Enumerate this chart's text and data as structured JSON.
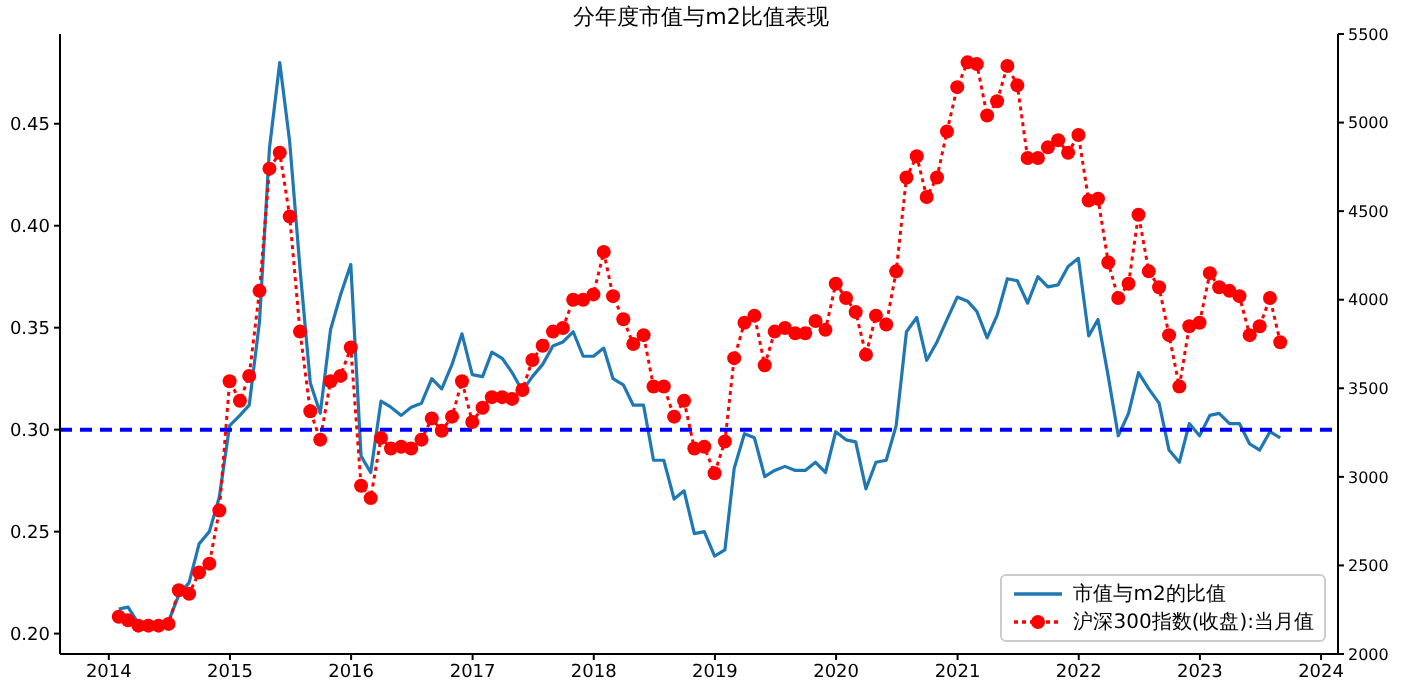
{
  "chart_data": {
    "type": "line",
    "title": "分年度市值与m2比值表现",
    "x": [
      "2014-01-31",
      "2014-02-28",
      "2014-03-31",
      "2014-04-30",
      "2014-05-31",
      "2014-06-30",
      "2014-07-31",
      "2014-08-31",
      "2014-09-30",
      "2014-10-31",
      "2014-11-30",
      "2014-12-31",
      "2015-01-31",
      "2015-02-28",
      "2015-03-31",
      "2015-04-30",
      "2015-05-31",
      "2015-06-30",
      "2015-07-31",
      "2015-08-31",
      "2015-09-30",
      "2015-10-31",
      "2015-11-30",
      "2015-12-31",
      "2016-01-31",
      "2016-02-29",
      "2016-03-31",
      "2016-04-30",
      "2016-05-31",
      "2016-06-30",
      "2016-07-31",
      "2016-08-31",
      "2016-09-30",
      "2016-10-31",
      "2016-11-30",
      "2016-12-31",
      "2017-01-31",
      "2017-02-28",
      "2017-03-31",
      "2017-04-30",
      "2017-05-31",
      "2017-06-30",
      "2017-07-31",
      "2017-08-31",
      "2017-09-30",
      "2017-10-31",
      "2017-11-30",
      "2017-12-31",
      "2018-01-31",
      "2018-02-28",
      "2018-03-31",
      "2018-04-30",
      "2018-05-31",
      "2018-06-30",
      "2018-07-31",
      "2018-08-31",
      "2018-09-30",
      "2018-10-31",
      "2018-11-30",
      "2018-12-31",
      "2019-01-31",
      "2019-02-28",
      "2019-03-31",
      "2019-04-30",
      "2019-05-31",
      "2019-06-30",
      "2019-07-31",
      "2019-08-31",
      "2019-09-30",
      "2019-10-31",
      "2019-11-30",
      "2019-12-31",
      "2020-01-31",
      "2020-02-29",
      "2020-03-31",
      "2020-04-30",
      "2020-05-31",
      "2020-06-30",
      "2020-07-31",
      "2020-08-31",
      "2020-09-30",
      "2020-10-31",
      "2020-11-30",
      "2020-12-31",
      "2021-01-31",
      "2021-02-28",
      "2021-03-31",
      "2021-04-30",
      "2021-05-31",
      "2021-06-30",
      "2021-07-31",
      "2021-08-31",
      "2021-09-30",
      "2021-10-31",
      "2021-11-30",
      "2021-12-31",
      "2022-01-31",
      "2022-02-28",
      "2022-03-31",
      "2022-04-30",
      "2022-05-31",
      "2022-06-30",
      "2022-07-31",
      "2022-08-31",
      "2022-09-30",
      "2022-10-31",
      "2022-11-30",
      "2022-12-31",
      "2023-01-31",
      "2023-02-28",
      "2023-03-31",
      "2023-04-30",
      "2023-05-31",
      "2023-06-30",
      "2023-07-31",
      "2023-08-31"
    ],
    "series": [
      {
        "name": "市值与m2的比值",
        "color": "#1f77b4",
        "line_style": "solid",
        "marker": "none",
        "values": [
          0.212,
          0.213,
          0.205,
          0.204,
          0.205,
          0.206,
          0.219,
          0.225,
          0.244,
          0.25,
          0.267,
          0.302,
          0.307,
          0.312,
          0.353,
          0.438,
          0.48,
          0.441,
          0.379,
          0.323,
          0.308,
          0.349,
          0.366,
          0.381,
          0.287,
          0.279,
          0.314,
          0.311,
          0.307,
          0.311,
          0.313,
          0.325,
          0.32,
          0.332,
          0.347,
          0.327,
          0.326,
          0.338,
          0.335,
          0.328,
          0.319,
          0.326,
          0.332,
          0.341,
          0.343,
          0.348,
          0.336,
          0.336,
          0.34,
          0.325,
          0.322,
          0.312,
          0.312,
          0.285,
          0.285,
          0.266,
          0.27,
          0.249,
          0.25,
          0.238,
          0.241,
          0.281,
          0.298,
          0.296,
          0.277,
          0.28,
          0.282,
          0.28,
          0.28,
          0.284,
          0.279,
          0.299,
          0.295,
          0.294,
          0.271,
          0.284,
          0.285,
          0.302,
          0.348,
          0.355,
          0.334,
          0.343,
          0.354,
          0.365,
          0.363,
          0.358,
          0.345,
          0.356,
          0.374,
          0.373,
          0.362,
          0.375,
          0.37,
          0.371,
          0.38,
          0.384,
          0.346,
          0.354,
          0.326,
          0.297,
          0.308,
          0.328,
          0.32,
          0.313,
          0.29,
          0.284,
          0.303,
          0.297,
          0.307,
          0.308,
          0.303,
          0.303,
          0.293,
          0.29,
          0.299,
          0.296
        ]
      },
      {
        "name": "沪深300指数(收盘):当月值",
        "color": "#ff0000",
        "line_style": "dotted",
        "marker": "circle",
        "axis": "y2",
        "values": [
          2210,
          2190,
          2160,
          2160,
          2160,
          2170,
          2360,
          2340,
          2460,
          2510,
          2810,
          3540,
          3430,
          3570,
          4050,
          4740,
          4830,
          4470,
          3820,
          3370,
          3210,
          3540,
          3570,
          3730,
          2950,
          2880,
          3220,
          3160,
          3170,
          3160,
          3210,
          3330,
          3260,
          3340,
          3540,
          3310,
          3390,
          3450,
          3450,
          3440,
          3490,
          3660,
          3740,
          3820,
          3840,
          4000,
          4000,
          4030,
          4270,
          4020,
          3890,
          3750,
          3800,
          3510,
          3510,
          3340,
          3430,
          3160,
          3170,
          3020,
          3200,
          3670,
          3870,
          3910,
          3630,
          3820,
          3840,
          3810,
          3810,
          3880,
          3830,
          4090,
          4010,
          3930,
          3690,
          3910,
          3860,
          4160,
          4690,
          4810,
          4580,
          4690,
          4950,
          5200,
          5340,
          5330,
          5040,
          5120,
          5320,
          5210,
          4800,
          4800,
          4860,
          4900,
          4830,
          4930,
          4560,
          4570,
          4210,
          4010,
          4090,
          4480,
          4160,
          4070,
          3800,
          3510,
          3850,
          3870,
          4150,
          4070,
          4050,
          4020,
          3800,
          3850,
          4010,
          3760
        ]
      }
    ],
    "xlim": [
      "2013-08-07",
      "2024-02-21"
    ],
    "xticks": [
      "2014",
      "2015",
      "2016",
      "2017",
      "2018",
      "2019",
      "2020",
      "2021",
      "2022",
      "2023",
      "2024"
    ],
    "ylim": [
      0.19,
      0.494
    ],
    "yticks": [
      {
        "value": 0.2,
        "label": "0.20"
      },
      0.25,
      {
        "value": 0.3,
        "label": "0.30"
      },
      0.35,
      {
        "value": 0.4,
        "label": "0.40"
      },
      0.45
    ],
    "y2lim": [
      2000,
      5500
    ],
    "y2ticks": [
      2000,
      2500,
      3000,
      3500,
      4000,
      4500,
      5000,
      5500
    ],
    "ref_lines": [
      {
        "axis": "y",
        "value": 0.3,
        "color": "#0000ff",
        "line_style": "dashed"
      }
    ],
    "grid": false,
    "legend": "bottom right"
  }
}
